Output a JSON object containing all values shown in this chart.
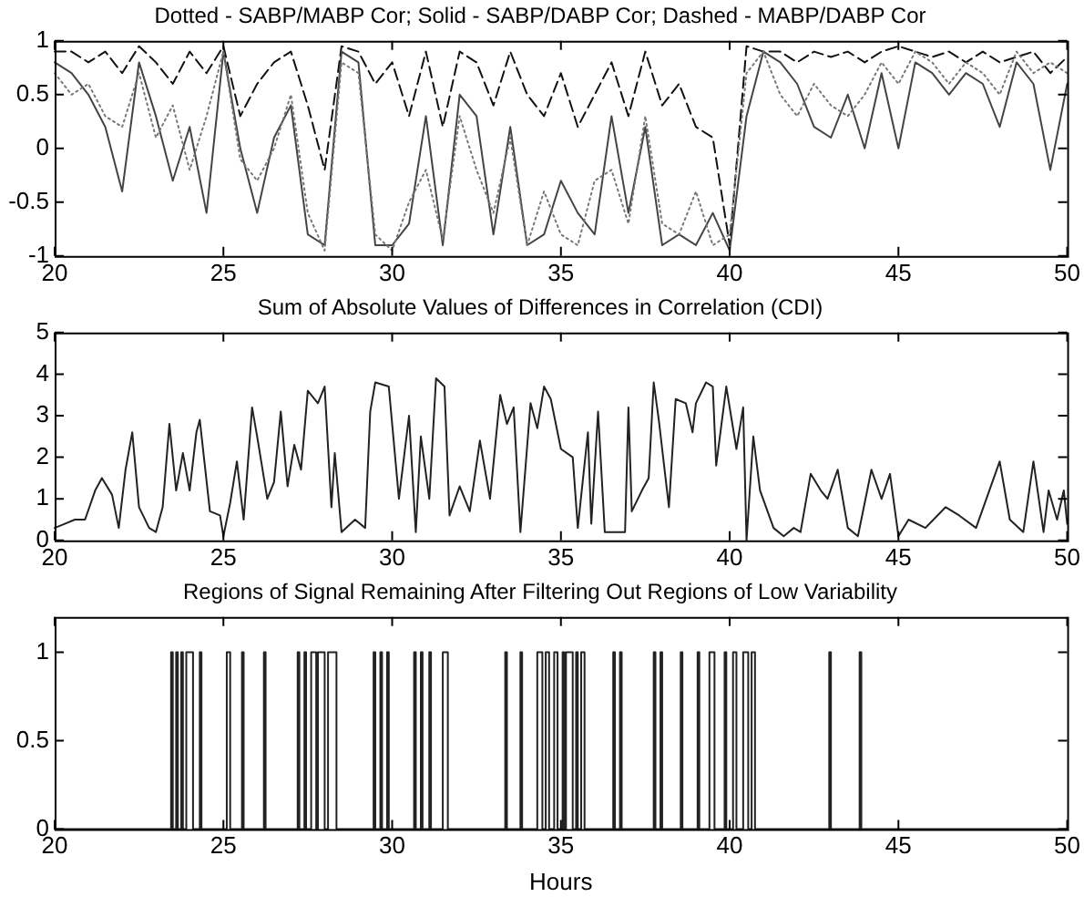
{
  "chart_data": [
    {
      "type": "line",
      "title": "Dotted - SABP/MABP Cor; Solid - SABP/DABP Cor; Dashed - MABP/DABP Cor",
      "marker": "none",
      "grid": false,
      "legend": false,
      "x": [
        20,
        20.5,
        21,
        21.5,
        22,
        22.5,
        23,
        23.5,
        24,
        24.5,
        25,
        25.5,
        26,
        26.5,
        27,
        27.5,
        28,
        28.5,
        29,
        29.5,
        30,
        30.5,
        31,
        31.5,
        32,
        32.5,
        33,
        33.5,
        34,
        34.5,
        35,
        35.5,
        36,
        36.5,
        37,
        37.5,
        38,
        38.5,
        39,
        39.5,
        40,
        40.5,
        41,
        41.5,
        42,
        42.5,
        43,
        43.5,
        44,
        44.5,
        45,
        45.5,
        46,
        46.5,
        47,
        47.5,
        48,
        48.5,
        49,
        49.5,
        50
      ],
      "xlim": [
        20,
        50
      ],
      "xticks": [
        20,
        25,
        30,
        35,
        40,
        45,
        50
      ],
      "ylim": [
        -1,
        1
      ],
      "yticks": [
        -1,
        -0.5,
        0,
        0.5,
        1
      ],
      "series": [
        {
          "color": "#777777",
          "line_style": "dotted",
          "values": [
            0.7,
            0.5,
            0.6,
            0.3,
            0.2,
            0.7,
            0.1,
            0.4,
            -0.2,
            0.3,
            0.9,
            -0.1,
            -0.3,
            0.0,
            0.5,
            -0.6,
            -0.95,
            0.8,
            0.7,
            -0.8,
            -0.95,
            -0.5,
            -0.2,
            -0.85,
            0.3,
            -0.2,
            -0.6,
            0.1,
            -0.9,
            -0.4,
            -0.8,
            -0.9,
            -0.3,
            -0.2,
            -0.7,
            0.3,
            -0.7,
            -0.8,
            -0.4,
            -0.9,
            -0.8,
            0.7,
            0.9,
            0.5,
            0.3,
            0.6,
            0.4,
            0.3,
            0.5,
            0.8,
            0.6,
            0.9,
            0.8,
            0.6,
            0.8,
            0.7,
            0.5,
            0.9,
            0.7,
            0.8,
            0.7
          ]
        },
        {
          "color": "#444444",
          "line_style": "solid",
          "values": [
            0.8,
            0.7,
            0.5,
            0.2,
            -0.4,
            0.8,
            0.3,
            -0.3,
            0.2,
            -0.6,
            0.9,
            0,
            -0.6,
            0.1,
            0.4,
            -0.8,
            -0.9,
            0.9,
            0.8,
            -0.9,
            -0.9,
            -0.7,
            0.3,
            -0.9,
            0.5,
            0.3,
            -0.8,
            0.2,
            -0.9,
            -0.8,
            -0.3,
            -0.6,
            -0.8,
            0.3,
            -0.6,
            0.2,
            -0.9,
            -0.8,
            -0.9,
            -0.6,
            -0.95,
            0.3,
            0.9,
            0.8,
            0.6,
            0.2,
            0.1,
            0.5,
            0,
            0.7,
            0,
            0.8,
            0.7,
            0.5,
            0.7,
            0.6,
            0.2,
            0.8,
            0.6,
            -0.2,
            0.6
          ]
        },
        {
          "color": "#111111",
          "line_style": "dashed",
          "values": [
            0.9,
            0.9,
            0.8,
            0.9,
            0.7,
            0.95,
            0.8,
            0.6,
            0.9,
            0.7,
            0.95,
            0.3,
            0.6,
            0.8,
            0.9,
            0.4,
            -0.2,
            0.95,
            0.9,
            0.6,
            0.8,
            0.3,
            0.9,
            0.2,
            0.9,
            0.8,
            0.4,
            0.9,
            0.5,
            0.3,
            0.7,
            0.2,
            0.5,
            0.8,
            0.3,
            0.9,
            0.4,
            0.6,
            0.2,
            0.1,
            -0.9,
            0.95,
            0.9,
            0.9,
            0.8,
            0.9,
            0.85,
            0.9,
            0.8,
            0.9,
            0.95,
            0.9,
            0.85,
            0.9,
            0.8,
            0.9,
            0.8,
            0.85,
            0.9,
            0.7,
            0.85
          ]
        }
      ]
    },
    {
      "type": "line",
      "title": "Sum of Absolute Values of Differences in Correlation (CDI)",
      "marker": "none",
      "grid": false,
      "legend": false,
      "xlim": [
        20,
        50
      ],
      "xticks": [
        20,
        25,
        30,
        35,
        40,
        45,
        50
      ],
      "ylim": [
        0,
        5
      ],
      "yticks": [
        0,
        1,
        2,
        3,
        4,
        5
      ],
      "series": [
        {
          "color": "#222222",
          "line_style": "solid",
          "x": [
            20,
            20.3,
            20.6,
            20.9,
            21.2,
            21.4,
            21.7,
            21.9,
            22.1,
            22.3,
            22.5,
            22.8,
            23,
            23.2,
            23.4,
            23.6,
            23.8,
            24,
            24.2,
            24.3,
            24.6,
            24.9,
            25,
            25.2,
            25.4,
            25.6,
            25.85,
            26,
            26.3,
            26.5,
            26.7,
            26.9,
            27.1,
            27.3,
            27.5,
            27.8,
            28,
            28.2,
            28.3,
            28.5,
            28.9,
            29.2,
            29.35,
            29.5,
            29.9,
            30.2,
            30.5,
            30.7,
            30.85,
            31.1,
            31.3,
            31.55,
            31.7,
            32,
            32.3,
            32.6,
            32.9,
            33.2,
            33.4,
            33.6,
            33.8,
            34.1,
            34.3,
            34.5,
            34.7,
            35,
            35.35,
            35.5,
            35.8,
            35.9,
            36.1,
            36.3,
            36.9,
            37,
            37.1,
            37.4,
            37.6,
            37.75,
            37.9,
            38.2,
            38.4,
            38.7,
            38.9,
            39,
            39.3,
            39.5,
            39.6,
            39.9,
            40.2,
            40.4,
            40.5,
            40.7,
            40.9,
            41.3,
            41.6,
            41.9,
            42.1,
            42.4,
            42.7,
            42.9,
            43.2,
            43.5,
            43.8,
            44.2,
            44.5,
            44.75,
            45,
            45.3,
            45.8,
            46.4,
            46.8,
            47.3,
            48,
            48.3,
            48.7,
            49,
            49.3,
            49.45,
            49.7,
            49.9,
            50
          ],
          "values": [
            0.3,
            0.4,
            0.5,
            0.5,
            1.2,
            1.5,
            1.1,
            0.3,
            1.7,
            2.6,
            0.8,
            0.3,
            0.2,
            0.8,
            2.8,
            1.2,
            2.1,
            1.2,
            2.6,
            2.9,
            0.7,
            0.6,
            0.1,
            0.9,
            1.9,
            0.5,
            3.2,
            2.5,
            1.0,
            1.4,
            3.1,
            1.3,
            2.3,
            1.7,
            3.6,
            3.3,
            3.7,
            0.8,
            2.1,
            0.2,
            0.5,
            0.3,
            3.1,
            3.8,
            3.7,
            1.0,
            3.0,
            0.2,
            2.5,
            1.0,
            3.9,
            3.7,
            0.6,
            1.3,
            0.7,
            2.4,
            1.0,
            3.5,
            2.8,
            3.2,
            0.2,
            3.3,
            2.7,
            3.7,
            3.4,
            2.2,
            2.0,
            0.3,
            2.6,
            0.4,
            3.1,
            0.2,
            0.2,
            3.2,
            0.7,
            1.2,
            1.5,
            3.8,
            2.9,
            0.8,
            3.4,
            3.3,
            2.6,
            3.3,
            3.8,
            3.7,
            1.8,
            3.7,
            2.2,
            3.2,
            0.0,
            2.5,
            1.2,
            0.3,
            0.1,
            0.3,
            0.2,
            1.6,
            1.2,
            1.0,
            1.7,
            0.3,
            0.1,
            1.7,
            1.0,
            1.6,
            0.1,
            0.5,
            0.3,
            0.8,
            0.6,
            0.3,
            1.9,
            0.5,
            0.2,
            1.9,
            0.2,
            1.2,
            0.5,
            1.2,
            0.4
          ]
        }
      ]
    },
    {
      "type": "step",
      "title": "Regions of Signal Remaining After Filtering Out Regions of Low Variability",
      "xlabel": "Hours",
      "marker": "none",
      "grid": false,
      "legend": false,
      "xlim": [
        20,
        50
      ],
      "xticks": [
        20,
        25,
        30,
        35,
        40,
        45,
        50
      ],
      "ylim": [
        0,
        1.2
      ],
      "yticks": [
        0,
        0.5,
        1
      ],
      "series": [
        {
          "color": "#222222",
          "line_style": "solid",
          "x": [
            20,
            23.45,
            23.5,
            23.6,
            23.65,
            23.75,
            23.8,
            23.9,
            24.1,
            24.3,
            24.35,
            25.1,
            25.2,
            25.55,
            25.6,
            26.2,
            26.25,
            27.2,
            27.25,
            27.4,
            27.45,
            27.6,
            27.75,
            27.8,
            28,
            28.1,
            28.35,
            29.45,
            29.5,
            29.65,
            29.7,
            29.85,
            29.9,
            30.65,
            30.7,
            30.85,
            30.9,
            31.1,
            31.15,
            31.5,
            31.65,
            33.35,
            33.4,
            33.8,
            33.85,
            34.3,
            34.45,
            34.55,
            34.65,
            34.8,
            34.9,
            35.05,
            35.1,
            35.15,
            35.35,
            35.45,
            35.5,
            35.6,
            35.7,
            36.55,
            36.6,
            36.75,
            36.8,
            37.75,
            37.8,
            37.95,
            38,
            38.55,
            38.6,
            39.05,
            39.1,
            39.4,
            39.55,
            39.85,
            39.9,
            40.1,
            40.2,
            40.4,
            40.55,
            40.65,
            40.75,
            42.95,
            43,
            43.85,
            43.9,
            50
          ],
          "values": [
            0,
            1,
            0,
            1,
            0,
            1,
            0,
            1,
            0,
            1,
            0,
            1,
            0,
            1,
            0,
            1,
            0,
            1,
            0,
            1,
            0,
            1,
            0,
            1,
            0,
            1,
            0,
            1,
            0,
            1,
            0,
            1,
            0,
            1,
            0,
            1,
            0,
            1,
            0,
            1,
            0,
            1,
            0,
            1,
            0,
            1,
            0,
            1,
            0,
            1,
            0,
            1,
            0,
            1,
            0,
            1,
            0,
            1,
            0,
            1,
            0,
            1,
            0,
            1,
            0,
            1,
            0,
            1,
            0,
            1,
            0,
            1,
            0,
            1,
            0,
            1,
            0,
            1,
            0,
            1,
            0,
            1,
            0,
            1,
            0,
            0
          ]
        }
      ]
    }
  ]
}
